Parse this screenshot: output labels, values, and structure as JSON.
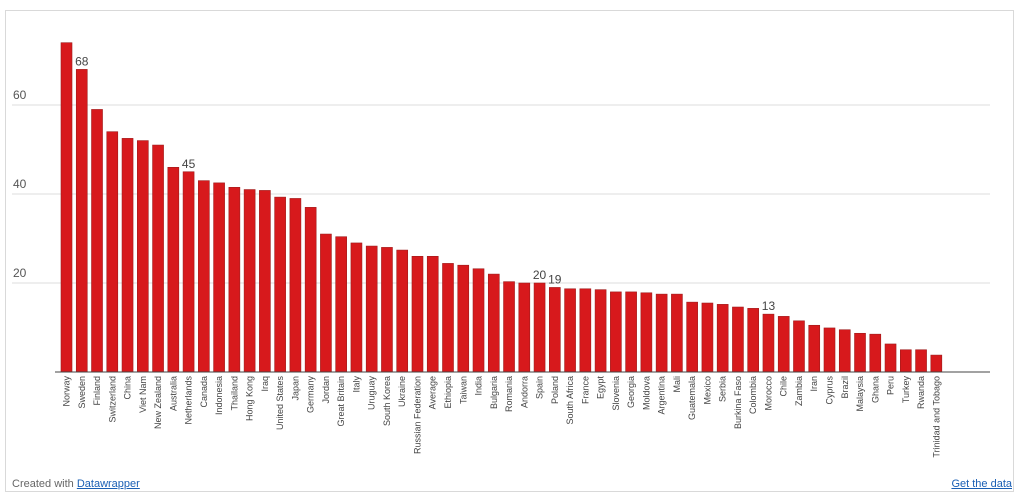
{
  "footer": {
    "created_with": "Created with",
    "datawrapper_link": "Datawrapper",
    "get_data_link": "Get the data"
  },
  "chart_data": {
    "type": "bar",
    "title": "",
    "xlabel": "",
    "ylabel": "",
    "ylim": [
      0,
      75
    ],
    "yticks": [
      20,
      40,
      60
    ],
    "grid": true,
    "bar_color": "#d7191c",
    "bar_stroke": "#9e1b1b",
    "categories": [
      "Norway",
      "Sweden",
      "Finland",
      "Switzerland",
      "China",
      "Viet Nam",
      "New Zealand",
      "Australia",
      "Netherlands",
      "Canada",
      "Indonesia",
      "Thailand",
      "Hong Kong",
      "Iraq",
      "United States",
      "Japan",
      "Germany",
      "Jordan",
      "Great Britain",
      "Italy",
      "Uruguay",
      "South Korea",
      "Ukraine",
      "Russian Federation",
      "Average",
      "Ethiopia",
      "Taiwan",
      "India",
      "Bulgaria",
      "Romania",
      "Andorra",
      "Spain",
      "Poland",
      "South Africa",
      "France",
      "Egypt",
      "Slovenia",
      "Georgia",
      "Moldova",
      "Argentina",
      "Mali",
      "Guatemala",
      "Mexico",
      "Serbia",
      "Burkina Faso",
      "Colombia",
      "Morocco",
      "Chile",
      "Zambia",
      "Iran",
      "Cyprus",
      "Brazil",
      "Malaysia",
      "Ghana",
      "Peru",
      "Turkey",
      "Rwanda",
      "Trinidad and Tobago"
    ],
    "values": [
      74,
      68,
      59,
      54,
      52.5,
      52,
      51,
      46,
      45,
      43,
      42.5,
      41.5,
      41,
      40.8,
      39.3,
      39,
      37,
      31,
      30.4,
      29,
      28.3,
      28,
      27.4,
      26,
      26,
      24.4,
      24,
      23.2,
      22,
      20.3,
      20,
      20,
      19,
      18.7,
      18.7,
      18.5,
      18,
      18,
      17.8,
      17.5,
      17.5,
      15.7,
      15.5,
      15.2,
      14.6,
      14.3,
      13,
      12.5,
      11.5,
      10.5,
      9.9,
      9.5,
      8.7,
      8.5,
      6.3,
      5,
      5,
      3.8
    ],
    "data_labels": [
      {
        "category": "Sweden",
        "text": "68"
      },
      {
        "category": "Netherlands",
        "text": "45"
      },
      {
        "category": "Spain",
        "text": "20"
      },
      {
        "category": "Poland",
        "text": "19"
      },
      {
        "category": "Morocco",
        "text": "13"
      }
    ]
  }
}
